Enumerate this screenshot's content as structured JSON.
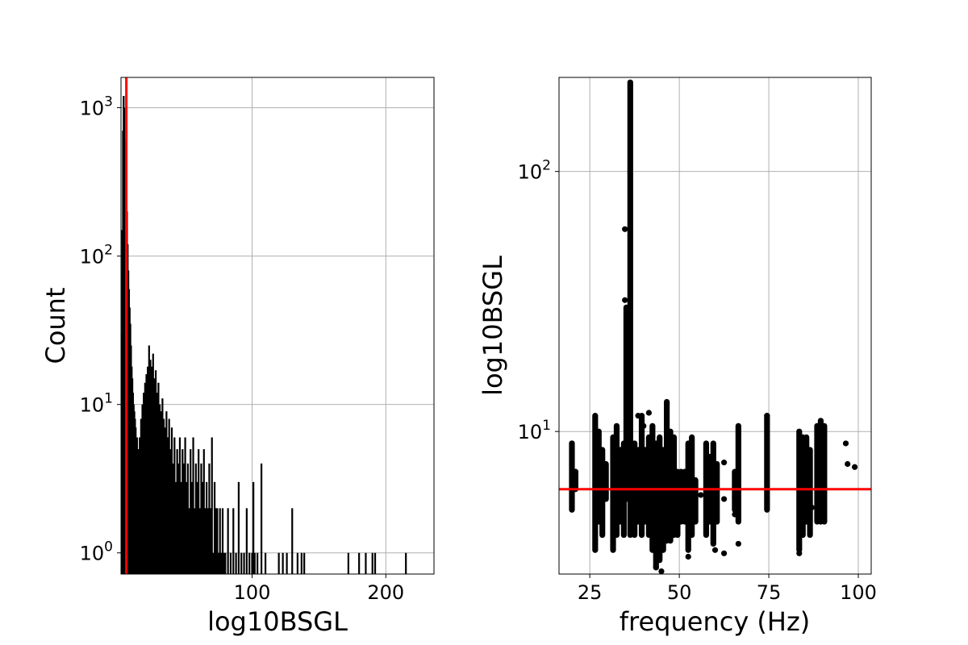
{
  "chart_data": [
    {
      "type": "histogram",
      "title": "",
      "xlabel": "log10BSGL",
      "ylabel": "Count",
      "yscale": "log",
      "xlim": [
        2,
        236
      ],
      "ylim": [
        0.72,
        1600
      ],
      "grid": true,
      "color": "#000000",
      "x_ticks": [
        100,
        200
      ],
      "y_ticks": [
        {
          "value": 1,
          "base": "10",
          "exp": "0"
        },
        {
          "value": 10,
          "base": "10",
          "exp": "1"
        },
        {
          "value": 100,
          "base": "10",
          "exp": "2"
        },
        {
          "value": 1000,
          "base": "10",
          "exp": "3"
        }
      ],
      "threshold_x": 6,
      "threshold_color": "#ff0000",
      "bins": [
        [
          2.5,
          30
        ],
        [
          3,
          150
        ],
        [
          3.5,
          700
        ],
        [
          4,
          1200
        ],
        [
          4.5,
          1000
        ],
        [
          5,
          600
        ],
        [
          5.5,
          400
        ],
        [
          6,
          300
        ],
        [
          6.5,
          200
        ],
        [
          7,
          120
        ],
        [
          7.5,
          80
        ],
        [
          8,
          60
        ],
        [
          8.5,
          45
        ],
        [
          9,
          35
        ],
        [
          9.5,
          25
        ],
        [
          10,
          18
        ],
        [
          10.5,
          15
        ],
        [
          11,
          12
        ],
        [
          11.5,
          10
        ],
        [
          12,
          9
        ],
        [
          12.5,
          8
        ],
        [
          13,
          7
        ],
        [
          13.5,
          6
        ],
        [
          14,
          6
        ],
        [
          14.5,
          5
        ],
        [
          15,
          5
        ],
        [
          16,
          6
        ],
        [
          17,
          8
        ],
        [
          18,
          10
        ],
        [
          19,
          12
        ],
        [
          20,
          14
        ],
        [
          21,
          16
        ],
        [
          22,
          18
        ],
        [
          23,
          25
        ],
        [
          24,
          20
        ],
        [
          25,
          18
        ],
        [
          26,
          22
        ],
        [
          27,
          15
        ],
        [
          28,
          17
        ],
        [
          29,
          12
        ],
        [
          30,
          14
        ],
        [
          31,
          10
        ],
        [
          32,
          9
        ],
        [
          33,
          11
        ],
        [
          34,
          8
        ],
        [
          35,
          7
        ],
        [
          36,
          9
        ],
        [
          37,
          6
        ],
        [
          38,
          8
        ],
        [
          39,
          5
        ],
        [
          40,
          7
        ],
        [
          41,
          4
        ],
        [
          42,
          6
        ],
        [
          43,
          3
        ],
        [
          44,
          5
        ],
        [
          45,
          4
        ],
        [
          46,
          6
        ],
        [
          47,
          3
        ],
        [
          48,
          5
        ],
        [
          49,
          4
        ],
        [
          50,
          6
        ],
        [
          51,
          3
        ],
        [
          52,
          4
        ],
        [
          53,
          2
        ],
        [
          54,
          5
        ],
        [
          55,
          3
        ],
        [
          56,
          6
        ],
        [
          57,
          2
        ],
        [
          58,
          4
        ],
        [
          59,
          3
        ],
        [
          60,
          5
        ],
        [
          61,
          2
        ],
        [
          62,
          4
        ],
        [
          63,
          3
        ],
        [
          64,
          5
        ],
        [
          65,
          2
        ],
        [
          66,
          3
        ],
        [
          67,
          2
        ],
        [
          68,
          4
        ],
        [
          69,
          2
        ],
        [
          70,
          6
        ],
        [
          71,
          1
        ],
        [
          72,
          3
        ],
        [
          73,
          2
        ],
        [
          74,
          2
        ],
        [
          75,
          1
        ],
        [
          76,
          2
        ],
        [
          77,
          1
        ],
        [
          78,
          2
        ],
        [
          79,
          1
        ],
        [
          80,
          1
        ],
        [
          82,
          2
        ],
        [
          84,
          1
        ],
        [
          86,
          2
        ],
        [
          88,
          1
        ],
        [
          90,
          3
        ],
        [
          92,
          1
        ],
        [
          94,
          1
        ],
        [
          96,
          2
        ],
        [
          98,
          1
        ],
        [
          100,
          1
        ],
        [
          101,
          3
        ],
        [
          102,
          1
        ],
        [
          104,
          1
        ],
        [
          107,
          4
        ],
        [
          110,
          1
        ],
        [
          120,
          1
        ],
        [
          123,
          1
        ],
        [
          126,
          1
        ],
        [
          130,
          2
        ],
        [
          134,
          1
        ],
        [
          137,
          1
        ],
        [
          139,
          1
        ],
        [
          172,
          1
        ],
        [
          180,
          1
        ],
        [
          185,
          1
        ],
        [
          190,
          1
        ],
        [
          192,
          1
        ],
        [
          215,
          1
        ]
      ]
    },
    {
      "type": "scatter",
      "title": "",
      "xlabel": "frequency (Hz)",
      "ylabel": "log10BSGL",
      "yscale": "log",
      "xlim": [
        16.4,
        103.6
      ],
      "ylim": [
        2.83,
        230
      ],
      "grid": true,
      "color": "#000000",
      "x_ticks": [
        25,
        50,
        75,
        100
      ],
      "y_ticks": [
        {
          "value": 10,
          "base": "10",
          "exp": "1"
        },
        {
          "value": 100,
          "base": "10",
          "exp": "2"
        }
      ],
      "threshold_y": 6,
      "threshold_color": "#ff0000",
      "columns": [
        {
          "x": 20,
          "ymin": 5.0,
          "ymax": 9.0
        },
        {
          "x": 21,
          "ymin": 6.0,
          "ymax": 7.0
        },
        {
          "x": 26.5,
          "ymin": 3.5,
          "ymax": 11.5
        },
        {
          "x": 27.5,
          "ymin": 4.5,
          "ymax": 10.0
        },
        {
          "x": 28.5,
          "ymin": 4.0,
          "ymax": 8.5
        },
        {
          "x": 29.5,
          "ymin": 5.5,
          "ymax": 7.5
        },
        {
          "x": 31.5,
          "ymin": 3.5,
          "ymax": 9.5
        },
        {
          "x": 32.5,
          "ymin": 4.0,
          "ymax": 10.5
        },
        {
          "x": 33.5,
          "ymin": 4.5,
          "ymax": 8.5
        },
        {
          "x": 34.5,
          "ymin": 4.0,
          "ymax": 9.0
        },
        {
          "x": 35.2,
          "ymin": 5.5,
          "ymax": 30.0
        },
        {
          "x": 36.3,
          "ymin": 4.0,
          "ymax": 220.0
        },
        {
          "x": 37.5,
          "ymin": 4.0,
          "ymax": 9.0
        },
        {
          "x": 38.5,
          "ymin": 4.5,
          "ymax": 8.5
        },
        {
          "x": 39.5,
          "ymin": 4.0,
          "ymax": 11.5
        },
        {
          "x": 40.5,
          "ymin": 4.5,
          "ymax": 8.5
        },
        {
          "x": 41.5,
          "ymin": 4.0,
          "ymax": 9.5
        },
        {
          "x": 42.5,
          "ymin": 3.5,
          "ymax": 10.5
        },
        {
          "x": 43.5,
          "ymin": 3.0,
          "ymax": 9.0
        },
        {
          "x": 44.5,
          "ymin": 3.2,
          "ymax": 9.5
        },
        {
          "x": 45.5,
          "ymin": 3.5,
          "ymax": 8.5
        },
        {
          "x": 46.5,
          "ymin": 3.8,
          "ymax": 13.0
        },
        {
          "x": 47.5,
          "ymin": 3.8,
          "ymax": 10.0
        },
        {
          "x": 48.5,
          "ymin": 4.0,
          "ymax": 9.5
        },
        {
          "x": 49.5,
          "ymin": 4.0,
          "ymax": 7.0
        },
        {
          "x": 50.5,
          "ymin": 4.5,
          "ymax": 7.0
        },
        {
          "x": 51.5,
          "ymin": 4.5,
          "ymax": 7.0
        },
        {
          "x": 52.5,
          "ymin": 3.5,
          "ymax": 9.0
        },
        {
          "x": 53.5,
          "ymin": 4.0,
          "ymax": 9.5
        },
        {
          "x": 54.5,
          "ymin": 4.5,
          "ymax": 6.5
        },
        {
          "x": 57.5,
          "ymin": 4.0,
          "ymax": 9.0
        },
        {
          "x": 58.5,
          "ymin": 4.5,
          "ymax": 8.0
        },
        {
          "x": 59.5,
          "ymin": 3.7,
          "ymax": 9.0
        },
        {
          "x": 60.5,
          "ymin": 4.5,
          "ymax": 7.5
        },
        {
          "x": 62.5,
          "ymin": 5.5,
          "ymax": 5.5
        },
        {
          "x": 65.5,
          "ymin": 5.0,
          "ymax": 7.0
        },
        {
          "x": 66.5,
          "ymin": 4.5,
          "ymax": 10.5
        },
        {
          "x": 74.5,
          "ymin": 5.0,
          "ymax": 11.5
        },
        {
          "x": 83.5,
          "ymin": 3.5,
          "ymax": 10.0
        },
        {
          "x": 84.5,
          "ymin": 4.0,
          "ymax": 9.5
        },
        {
          "x": 85.5,
          "ymin": 4.5,
          "ymax": 9.5
        },
        {
          "x": 86.5,
          "ymin": 4.0,
          "ymax": 8.5
        },
        {
          "x": 88.5,
          "ymin": 4.5,
          "ymax": 10.5
        },
        {
          "x": 89.5,
          "ymin": 4.5,
          "ymax": 11.0
        },
        {
          "x": 90.5,
          "ymin": 4.5,
          "ymax": 10.5
        }
      ],
      "points": [
        [
          20,
          9.0
        ],
        [
          21,
          7.0
        ],
        [
          34.8,
          60.0
        ],
        [
          34.8,
          32.0
        ],
        [
          38.5,
          11.5
        ],
        [
          40,
          10.5
        ],
        [
          41.5,
          11.8
        ],
        [
          43.5,
          3.0
        ],
        [
          45,
          2.9
        ],
        [
          46.5,
          12.8
        ],
        [
          48.5,
          4.2
        ],
        [
          52.5,
          3.3
        ],
        [
          56,
          5.7
        ],
        [
          60,
          3.5
        ],
        [
          62.5,
          3.4
        ],
        [
          62.5,
          7.6
        ],
        [
          65.5,
          4.8
        ],
        [
          65.5,
          5.6
        ],
        [
          66.5,
          3.7
        ],
        [
          74.5,
          11.5
        ],
        [
          83.5,
          3.4
        ],
        [
          87,
          5.1
        ],
        [
          90.5,
          4.9
        ],
        [
          96.5,
          9.0
        ],
        [
          97,
          7.5
        ],
        [
          99,
          7.3
        ]
      ]
    }
  ]
}
